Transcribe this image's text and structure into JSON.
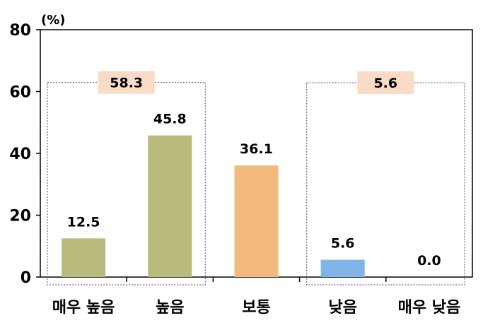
{
  "chart_data": {
    "type": "bar",
    "title": "",
    "ylabel": "(%)",
    "xlabel": "",
    "ylim": [
      0,
      80
    ],
    "yticks": [
      0,
      20,
      40,
      60,
      80
    ],
    "grid": false,
    "categories": [
      "매우 높음",
      "높음",
      "보통",
      "낮음",
      "매우 낮음"
    ],
    "values": [
      12.5,
      45.8,
      36.1,
      5.6,
      0.0
    ],
    "value_labels": [
      "12.5",
      "45.8",
      "36.1",
      "5.6",
      "0.0"
    ],
    "bar_colors": [
      "#b9bb7d",
      "#b9bb7d",
      "#f2ba7c",
      "#82b4ea",
      "#82b4ea"
    ],
    "groups": [
      {
        "label": "58.3",
        "categories": [
          "매우 높음",
          "높음"
        ],
        "box_color": "#8d5fa8",
        "label_bg": "#fadcc6"
      },
      {
        "label": "5.6",
        "categories": [
          "낮음",
          "매우 낮음"
        ],
        "box_color": "#8d5fa8",
        "label_bg": "#fadcc6"
      }
    ]
  }
}
